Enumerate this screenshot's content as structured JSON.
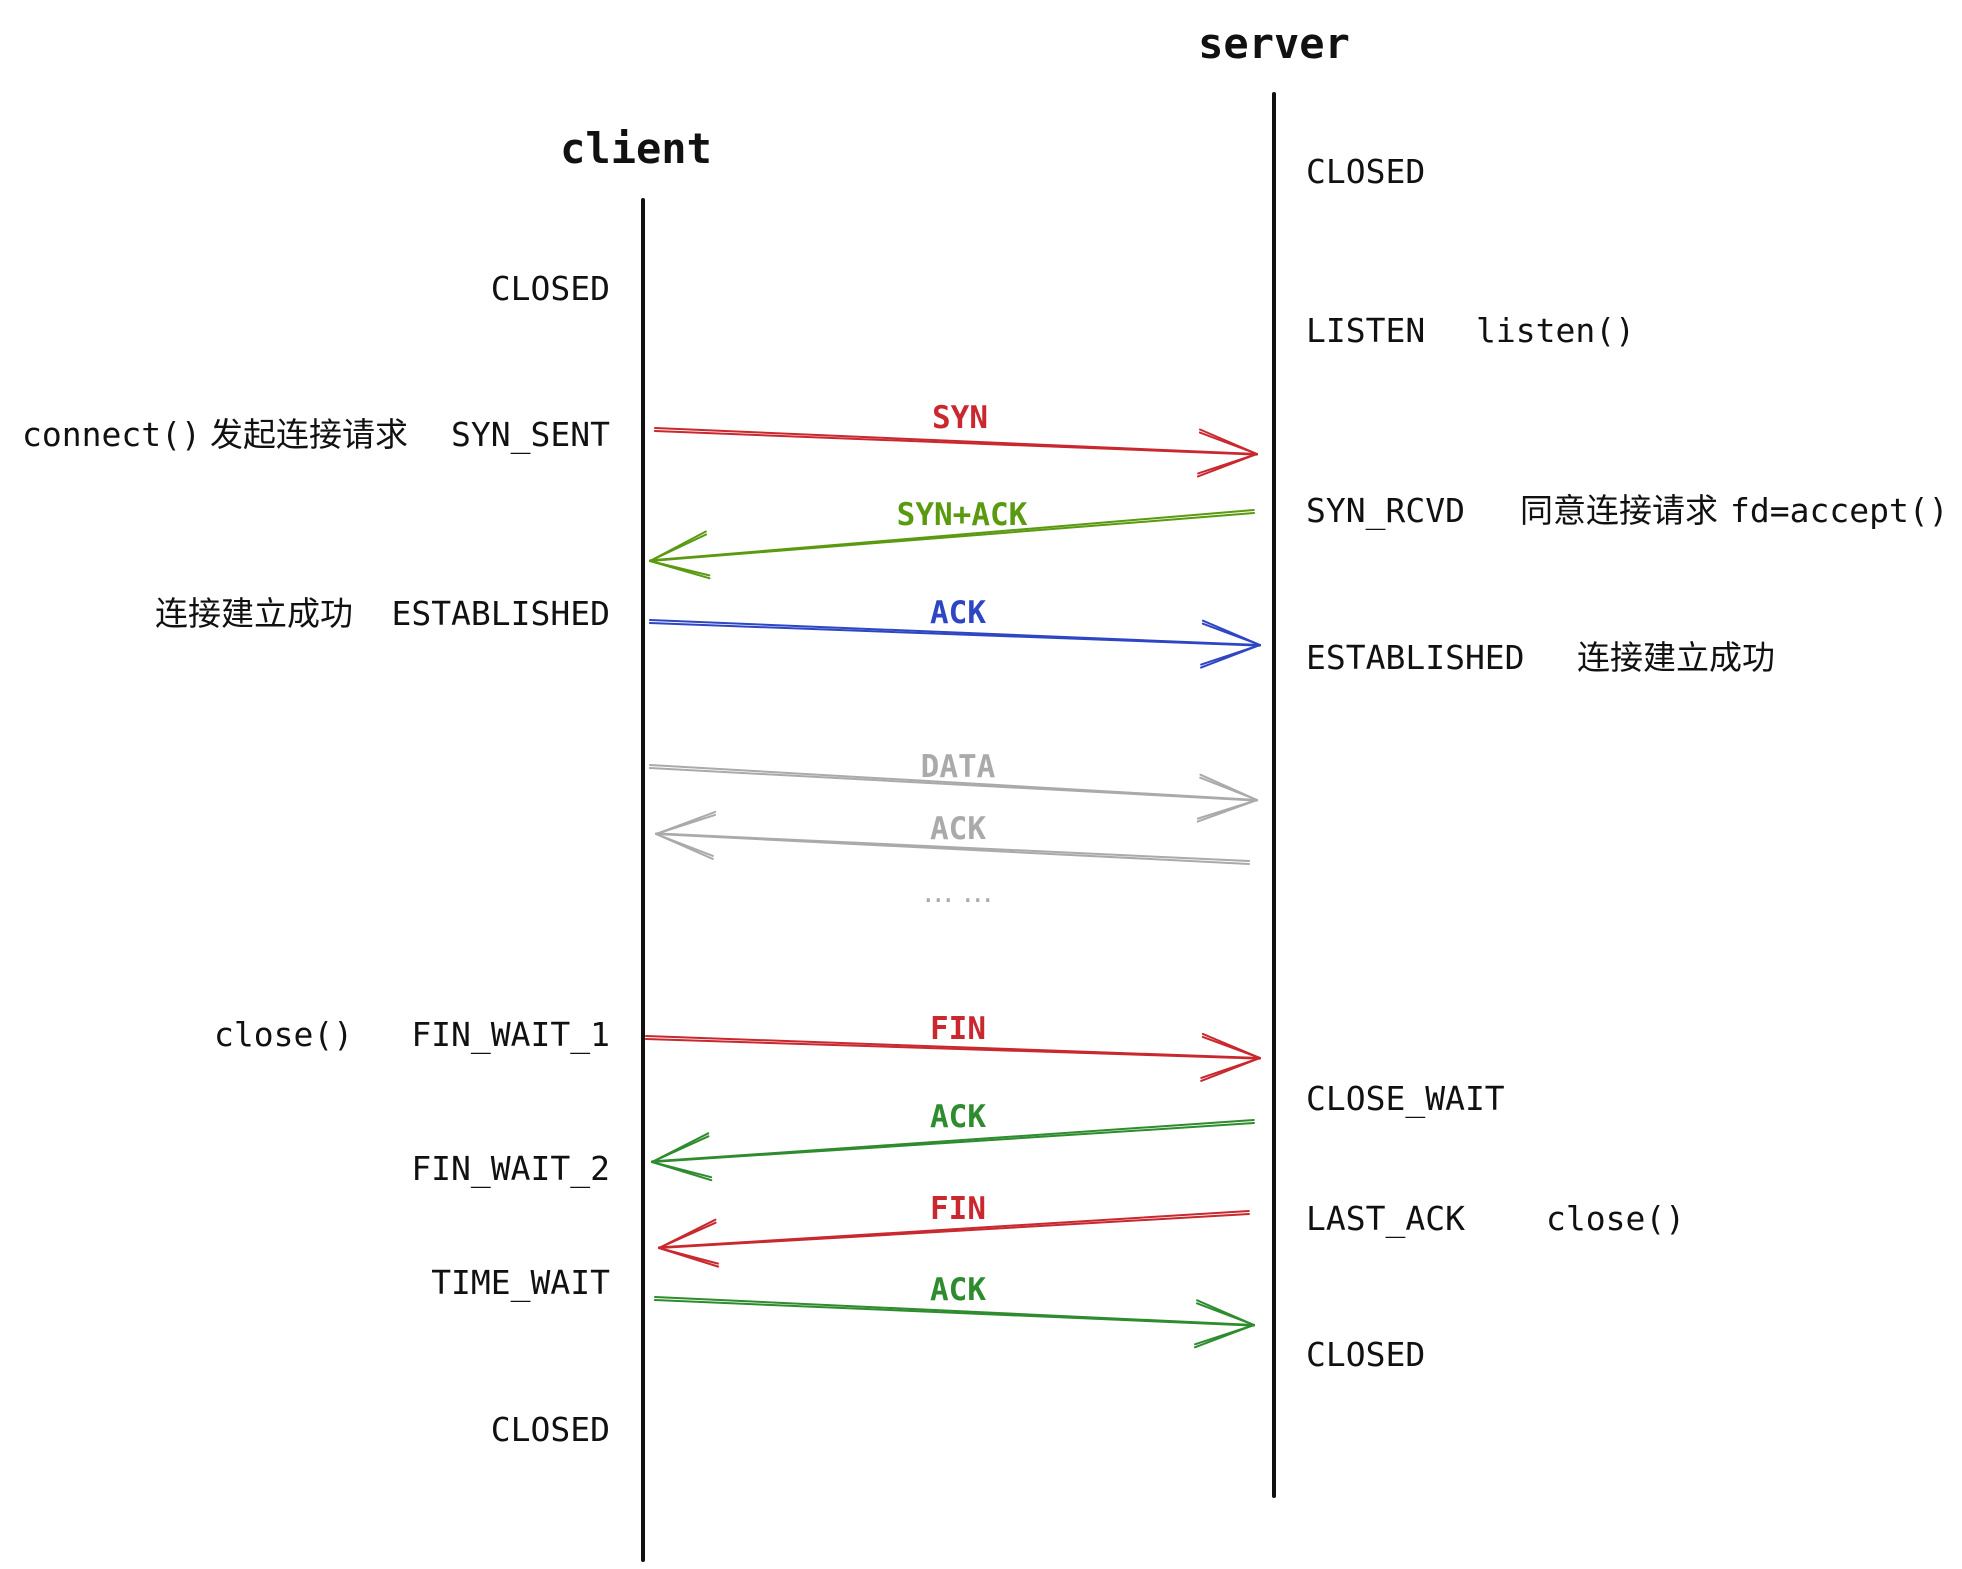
{
  "colors": {
    "red": "#c8282e",
    "green": "#2e8b2e",
    "yellow_green": "#5a9a10",
    "blue": "#2e46c4",
    "gray": "#aaaaaa",
    "black": "#111111"
  },
  "participants": {
    "client": "client",
    "server": "server"
  },
  "client_states": [
    {
      "id": "closed-1",
      "state": "CLOSED"
    },
    {
      "id": "syn-sent",
      "state": "SYN_SENT",
      "call": "connect()",
      "note": "发起连接请求"
    },
    {
      "id": "established",
      "state": "ESTABLISHED",
      "note": "连接建立成功"
    },
    {
      "id": "fin-wait-1",
      "state": "FIN_WAIT_1",
      "call": "close()"
    },
    {
      "id": "fin-wait-2",
      "state": "FIN_WAIT_2"
    },
    {
      "id": "time-wait",
      "state": "TIME_WAIT"
    },
    {
      "id": "closed-2",
      "state": "CLOSED"
    }
  ],
  "server_states": [
    {
      "id": "closed-1",
      "state": "CLOSED"
    },
    {
      "id": "listen",
      "state": "LISTEN",
      "call": "listen()"
    },
    {
      "id": "syn-rcvd",
      "state": "SYN_RCVD",
      "note": "同意连接请求",
      "call": "fd=accept()"
    },
    {
      "id": "established",
      "state": "ESTABLISHED",
      "note": "连接建立成功"
    },
    {
      "id": "close-wait",
      "state": "CLOSE_WAIT"
    },
    {
      "id": "last-ack",
      "state": "LAST_ACK",
      "call": "close()"
    },
    {
      "id": "closed-2",
      "state": "CLOSED"
    }
  ],
  "messages": [
    {
      "id": "syn",
      "label": "SYN",
      "direction": "client-to-server",
      "color": "red"
    },
    {
      "id": "syn-ack",
      "label": "SYN+ACK",
      "direction": "server-to-client",
      "color": "yellow_green"
    },
    {
      "id": "ack-1",
      "label": "ACK",
      "direction": "client-to-server",
      "color": "blue"
    },
    {
      "id": "data",
      "label": "DATA",
      "direction": "client-to-server",
      "color": "gray"
    },
    {
      "id": "data-ack",
      "label": "ACK",
      "direction": "server-to-client",
      "color": "gray"
    },
    {
      "id": "fin-1",
      "label": "FIN",
      "direction": "client-to-server",
      "color": "red"
    },
    {
      "id": "ack-2",
      "label": "ACK",
      "direction": "server-to-client",
      "color": "green"
    },
    {
      "id": "fin-2",
      "label": "FIN",
      "direction": "server-to-client",
      "color": "red"
    },
    {
      "id": "ack-3",
      "label": "ACK",
      "direction": "client-to-server",
      "color": "green"
    }
  ],
  "ellipsis": "…   …"
}
